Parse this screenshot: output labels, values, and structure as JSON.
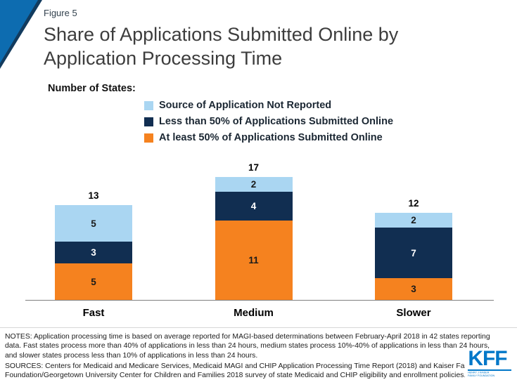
{
  "figure_label": "Figure 5",
  "title_lines": [
    "Share of Applications Submitted Online by",
    "Application Processing Time"
  ],
  "legend": {
    "heading": "Number of States:",
    "items": [
      {
        "label": "Source of Application Not Reported",
        "color": "#AAD6F2"
      },
      {
        "label": "Less than 50% of Applications Submitted Online",
        "color": "#112E51"
      },
      {
        "label": "At least 50% of Applications Submitted Online",
        "color": "#F5821F"
      }
    ]
  },
  "chart_data": {
    "type": "bar",
    "stacked": true,
    "title": "Share of Applications Submitted Online by Application Processing Time",
    "ylabel": "Number of States",
    "categories": [
      "Fast",
      "Medium",
      "Slower"
    ],
    "series": [
      {
        "name": "At least 50% of Applications Submitted Online",
        "color": "#F5821F",
        "text_color": "#1A1A1A",
        "values": [
          5,
          11,
          3
        ]
      },
      {
        "name": "Less than 50% of Applications Submitted Online",
        "color": "#112E51",
        "text_color": "#FFFFFF",
        "values": [
          3,
          4,
          7
        ]
      },
      {
        "name": "Source of Application Not Reported",
        "color": "#AAD6F2",
        "text_color": "#1A1A1A",
        "values": [
          5,
          2,
          2
        ]
      }
    ],
    "totals": [
      13,
      17,
      12
    ],
    "ylim": [
      0,
      17
    ],
    "grid": false,
    "legend_position": "top"
  },
  "footer": {
    "notes": "NOTES: Application processing time is based on average reported for MAGI-based determinations between February-April 2018 in 42 states reporting data. Fast states process more than 40% of applications in less than 24 hours, medium states process 10%-40% of applications in less than 24 hours, and slower states process less than 10% of applications in less than 24 hours.",
    "sources": "SOURCES: Centers for Medicaid and Medicare Services, Medicaid MAGI and CHIP Application Processing Time Report (2018) and Kaiser Family Foundation/Georgetown University Center for Children and Families 2018 survey of state Medicaid and CHIP eligibility and enrollment policies."
  },
  "logo": {
    "text": "KFF",
    "tagline_lines": [
      "HENRY J KAISER",
      "FAMILY FOUNDATION"
    ],
    "color": "#0077C8"
  }
}
